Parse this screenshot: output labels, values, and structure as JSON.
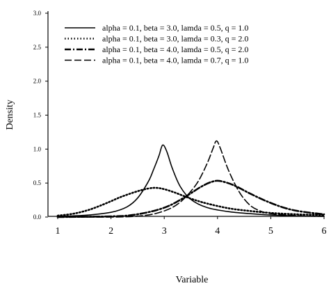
{
  "chart_data": {
    "type": "line",
    "xlabel": "Variable",
    "ylabel": "Density",
    "xlim": [
      1,
      6
    ],
    "ylim": [
      0,
      3
    ],
    "xticks": [
      "1",
      "2",
      "3",
      "4",
      "5",
      "6"
    ],
    "yticks": [
      "0.0",
      "0.5",
      "1.0",
      "1.5",
      "2.0",
      "2.5",
      "3.0"
    ],
    "legend_position": "top-left",
    "grid": false,
    "series": [
      {
        "name": "alpha = 0.1, beta = 3.0, lamda = 0.5, q = 1.0",
        "line_style": "solid",
        "points": [
          [
            1.0,
            0.01
          ],
          [
            1.5,
            0.025
          ],
          [
            2.0,
            0.07
          ],
          [
            2.3,
            0.15
          ],
          [
            2.5,
            0.28
          ],
          [
            2.7,
            0.52
          ],
          [
            2.8,
            0.7
          ],
          [
            2.9,
            0.9
          ],
          [
            2.97,
            1.06
          ],
          [
            3.05,
            0.96
          ],
          [
            3.15,
            0.72
          ],
          [
            3.3,
            0.45
          ],
          [
            3.5,
            0.26
          ],
          [
            3.8,
            0.14
          ],
          [
            4.2,
            0.08
          ],
          [
            4.6,
            0.05
          ],
          [
            5.0,
            0.03
          ],
          [
            5.5,
            0.015
          ],
          [
            6.0,
            0.01
          ]
        ]
      },
      {
        "name": "alpha = 0.1, beta = 3.0, lamda = 0.3, q = 2.0",
        "line_style": "dotted",
        "points": [
          [
            1.0,
            0.02
          ],
          [
            1.3,
            0.05
          ],
          [
            1.6,
            0.11
          ],
          [
            1.9,
            0.2
          ],
          [
            2.2,
            0.3
          ],
          [
            2.5,
            0.38
          ],
          [
            2.7,
            0.42
          ],
          [
            2.85,
            0.43
          ],
          [
            3.0,
            0.41
          ],
          [
            3.2,
            0.36
          ],
          [
            3.5,
            0.27
          ],
          [
            3.8,
            0.2
          ],
          [
            4.2,
            0.13
          ],
          [
            4.6,
            0.09
          ],
          [
            5.0,
            0.06
          ],
          [
            5.5,
            0.04
          ],
          [
            6.0,
            0.03
          ]
        ]
      },
      {
        "name": "alpha = 0.1, beta = 4.0, lamda = 0.5, q = 2.0",
        "line_style": "dashdot",
        "points": [
          [
            1.0,
            0.0
          ],
          [
            2.0,
            0.01
          ],
          [
            2.4,
            0.03
          ],
          [
            2.8,
            0.09
          ],
          [
            3.1,
            0.17
          ],
          [
            3.4,
            0.3
          ],
          [
            3.7,
            0.45
          ],
          [
            3.9,
            0.52
          ],
          [
            4.05,
            0.53
          ],
          [
            4.3,
            0.47
          ],
          [
            4.6,
            0.35
          ],
          [
            4.9,
            0.24
          ],
          [
            5.2,
            0.15
          ],
          [
            5.5,
            0.09
          ],
          [
            6.0,
            0.04
          ]
        ]
      },
      {
        "name": "alpha = 0.1, beta = 4.0, lamda = 0.7, q = 1.0",
        "line_style": "dashed",
        "points": [
          [
            1.0,
            0.0
          ],
          [
            2.0,
            0.0
          ],
          [
            2.6,
            0.02
          ],
          [
            3.0,
            0.09
          ],
          [
            3.3,
            0.22
          ],
          [
            3.6,
            0.48
          ],
          [
            3.8,
            0.78
          ],
          [
            3.92,
            1.02
          ],
          [
            3.98,
            1.12
          ],
          [
            4.05,
            1.02
          ],
          [
            4.2,
            0.7
          ],
          [
            4.4,
            0.38
          ],
          [
            4.6,
            0.18
          ],
          [
            4.8,
            0.09
          ],
          [
            5.0,
            0.05
          ],
          [
            5.5,
            0.02
          ],
          [
            6.0,
            0.01
          ]
        ]
      }
    ]
  }
}
